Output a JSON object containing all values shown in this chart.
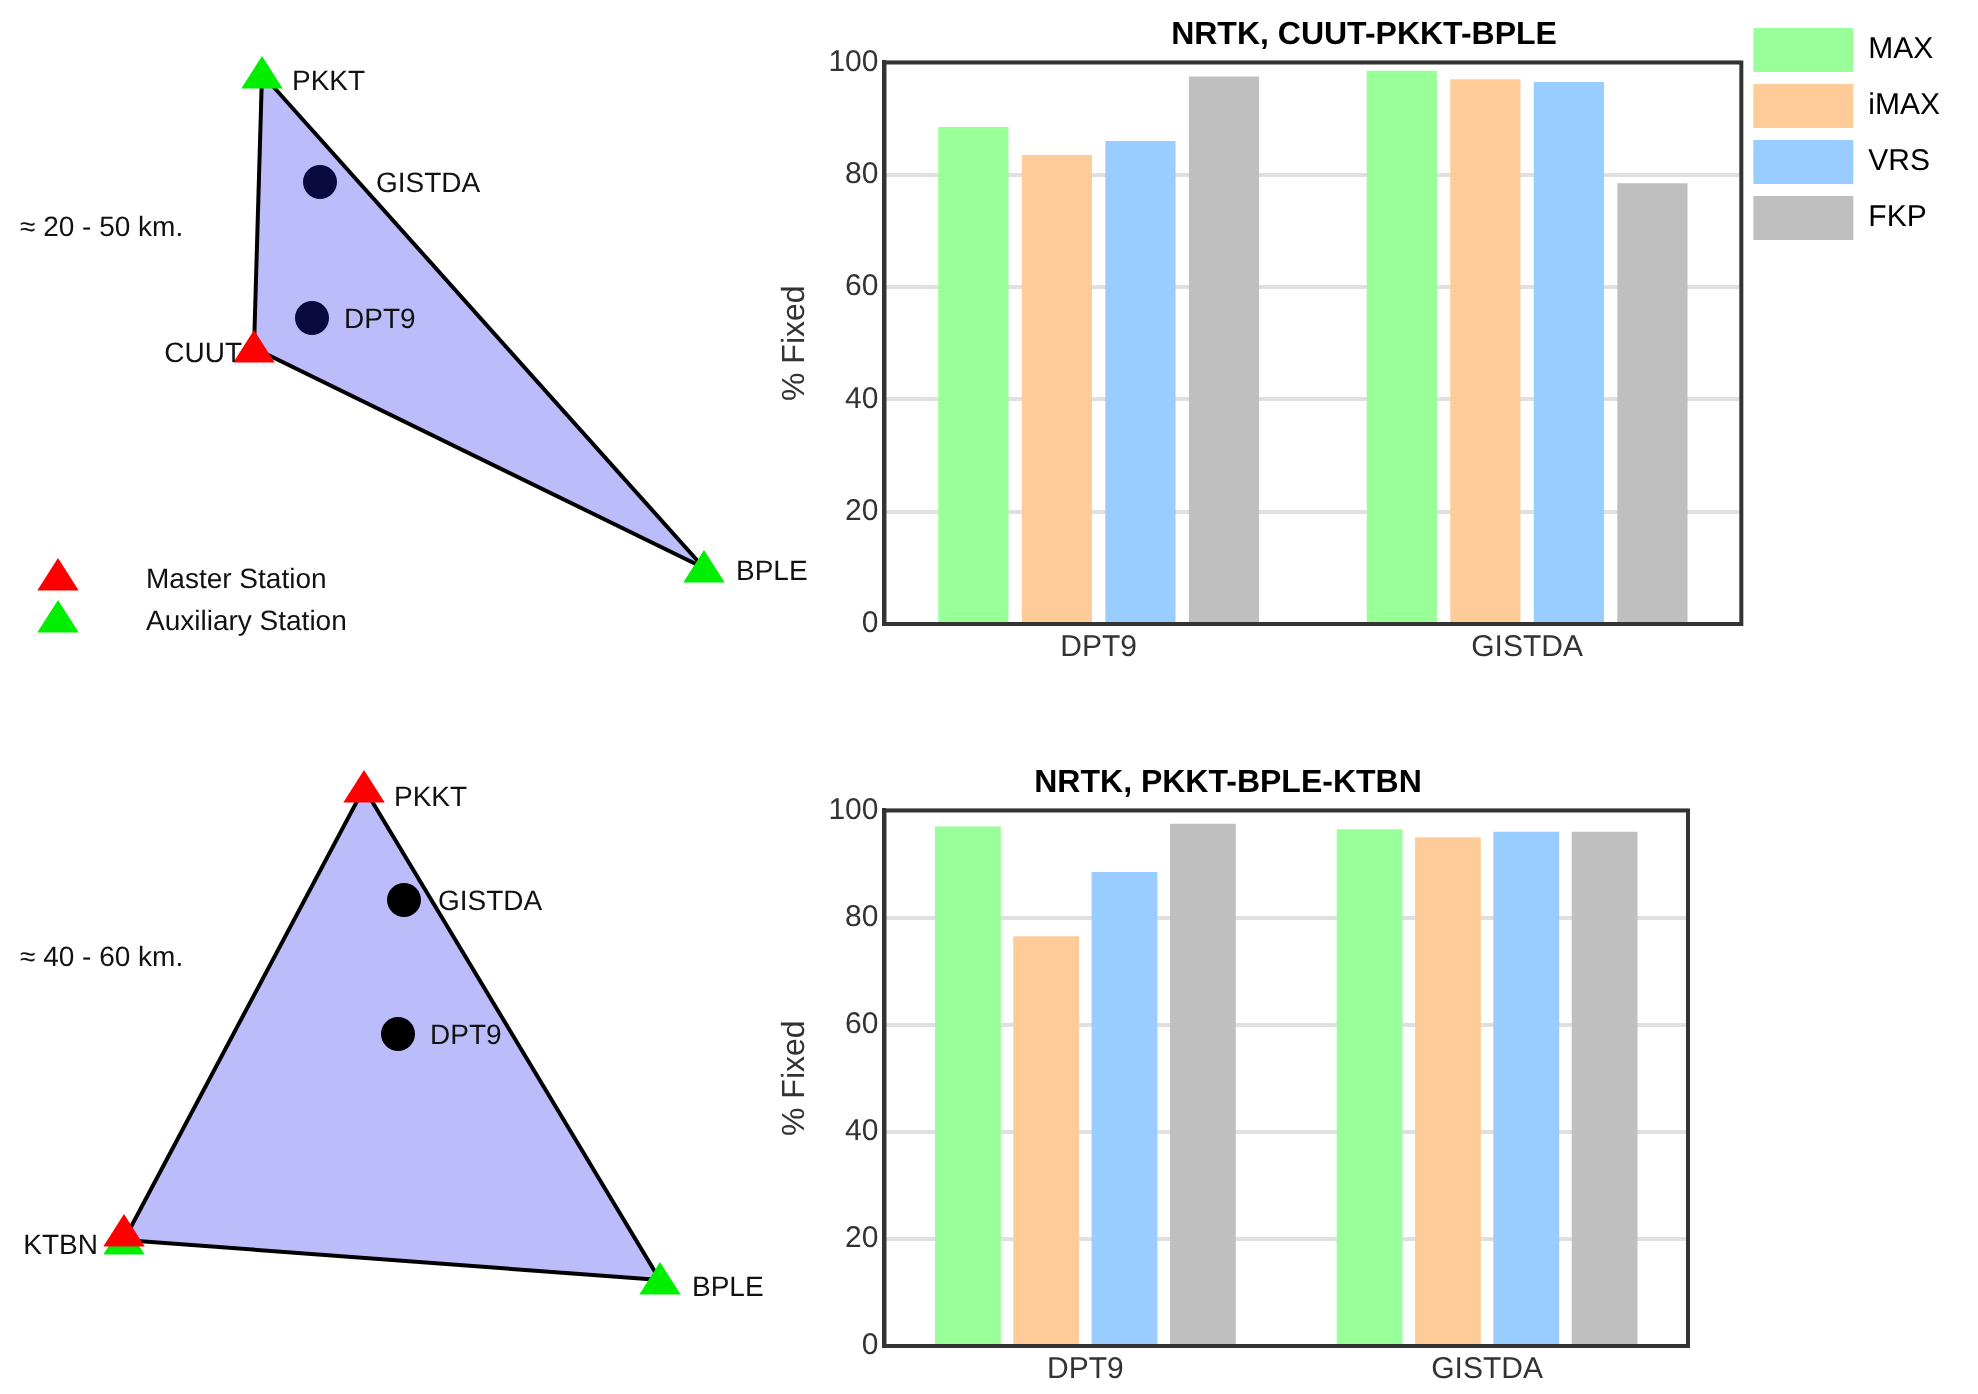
{
  "chart_data": [
    {
      "type": "other",
      "annotations": [
        "PKKT",
        "GISTDA",
        "≈ 20 - 50 km.",
        "DPT9",
        "CUUT",
        "BPLE",
        "Master Station",
        "Auxiliary Station"
      ]
    },
    {
      "type": "bar",
      "title": "NRTK, CUUT-PKKT-BPLE",
      "ylabel": "% Fixed",
      "categories": [
        "DPT9",
        "GISTDA"
      ],
      "ylim": [
        0,
        100
      ],
      "yticks": [
        0,
        20,
        40,
        60,
        80,
        100
      ],
      "grid": "y",
      "legend": "right",
      "series": [
        {
          "name": "MAX",
          "color": "#99ff99",
          "values": [
            88.5,
            98.5
          ]
        },
        {
          "name": "iMAX",
          "color": "#ffcc99",
          "values": [
            83.5,
            97
          ]
        },
        {
          "name": "VRS",
          "color": "#99ccff",
          "values": [
            86,
            96.5
          ]
        },
        {
          "name": "FKP",
          "color": "#bfbfbf",
          "values": [
            97.5,
            78.5
          ]
        }
      ]
    },
    {
      "type": "other",
      "annotations": [
        "PKKT",
        "GISTDA",
        "≈ 40 - 60 km.",
        "DPT9",
        "KTBN",
        "BPLE"
      ]
    },
    {
      "type": "bar",
      "title": "NRTK, PKKT-BPLE-KTBN",
      "ylabel": "% Fixed",
      "categories": [
        "DPT9",
        "GISTDA"
      ],
      "ylim": [
        0,
        100
      ],
      "yticks": [
        0,
        20,
        40,
        60,
        80,
        100
      ],
      "grid": "y",
      "series": [
        {
          "color": "#99ff99",
          "values": [
            97,
            96.5
          ]
        },
        {
          "color": "#ffcc99",
          "values": [
            76.5,
            95
          ]
        },
        {
          "color": "#99ccff",
          "values": [
            88.5,
            96
          ]
        },
        {
          "color": "#bfbfbf",
          "values": [
            97.5,
            96
          ]
        }
      ]
    }
  ]
}
